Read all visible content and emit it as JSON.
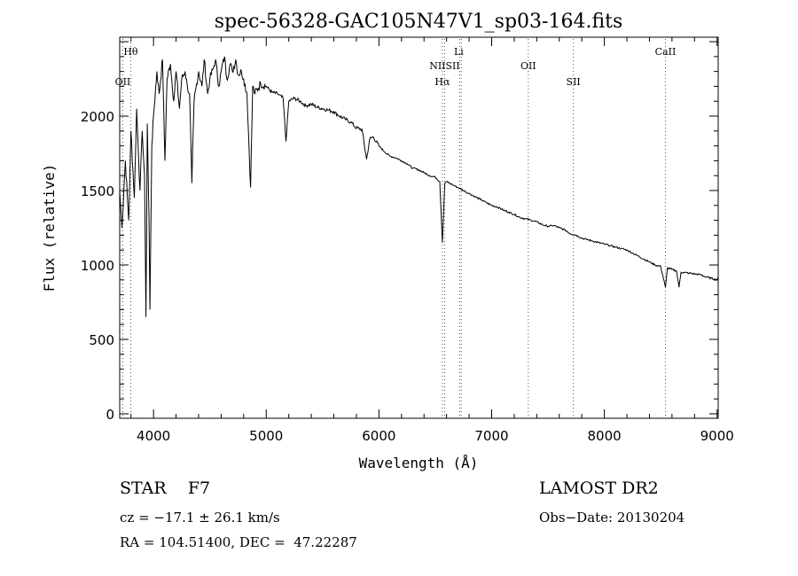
{
  "chart_data": {
    "type": "line",
    "title": "spec-56328-GAC105N47V1_sp03-164.fits",
    "xlabel": "Wavelength (Å)",
    "ylabel": "Flux (relative)",
    "xlim": [
      3700,
      9010
    ],
    "ylim": [
      -30,
      2530
    ],
    "xticks": [
      4000,
      5000,
      6000,
      7000,
      8000,
      9000
    ],
    "yticks": [
      0,
      500,
      1000,
      1500,
      2000
    ],
    "grid": false,
    "series": [
      {
        "name": "spectrum",
        "x": [
          3700,
          3720,
          3750,
          3780,
          3800,
          3830,
          3850,
          3880,
          3900,
          3920,
          3933,
          3945,
          3960,
          3968,
          3985,
          4000,
          4030,
          4050,
          4080,
          4101,
          4120,
          4150,
          4180,
          4200,
          4230,
          4250,
          4280,
          4300,
          4320,
          4340,
          4360,
          4400,
          4430,
          4450,
          4480,
          4500,
          4530,
          4550,
          4580,
          4600,
          4630,
          4650,
          4680,
          4700,
          4730,
          4750,
          4780,
          4800,
          4830,
          4861,
          4880,
          4900,
          4950,
          5000,
          5050,
          5100,
          5150,
          5175,
          5200,
          5250,
          5300,
          5350,
          5400,
          5450,
          5500,
          5550,
          5600,
          5650,
          5700,
          5750,
          5800,
          5850,
          5890,
          5920,
          5950,
          6000,
          6050,
          6100,
          6150,
          6200,
          6250,
          6300,
          6350,
          6400,
          6450,
          6500,
          6540,
          6563,
          6585,
          6600,
          6650,
          6700,
          6750,
          6800,
          6850,
          6900,
          6950,
          7000,
          7050,
          7100,
          7150,
          7200,
          7250,
          7300,
          7350,
          7400,
          7450,
          7500,
          7550,
          7600,
          7650,
          7700,
          7750,
          7800,
          7850,
          7900,
          7950,
          8000,
          8050,
          8100,
          8150,
          8200,
          8250,
          8300,
          8350,
          8400,
          8450,
          8500,
          8542,
          8560,
          8600,
          8640,
          8662,
          8680,
          8700,
          8750,
          8800,
          8850,
          8900,
          8950,
          9000,
          9010
        ],
        "y": [
          1500,
          1250,
          1700,
          1300,
          1900,
          1450,
          2050,
          1500,
          1900,
          1600,
          650,
          1950,
          1300,
          700,
          1800,
          2000,
          2300,
          2150,
          2380,
          1700,
          2250,
          2350,
          2100,
          2300,
          2050,
          2250,
          2300,
          2200,
          2150,
          1550,
          2100,
          2300,
          2200,
          2380,
          2150,
          2250,
          2320,
          2380,
          2200,
          2300,
          2400,
          2250,
          2350,
          2300,
          2380,
          2280,
          2300,
          2250,
          2150,
          1520,
          2200,
          2150,
          2220,
          2200,
          2160,
          2150,
          2120,
          1830,
          2100,
          2120,
          2100,
          2070,
          2080,
          2060,
          2050,
          2040,
          2030,
          2000,
          1980,
          1960,
          1920,
          1910,
          1710,
          1850,
          1860,
          1800,
          1760,
          1730,
          1720,
          1700,
          1680,
          1650,
          1640,
          1620,
          1600,
          1590,
          1560,
          1150,
          1550,
          1560,
          1540,
          1520,
          1500,
          1480,
          1460,
          1440,
          1420,
          1400,
          1390,
          1370,
          1355,
          1340,
          1320,
          1310,
          1300,
          1290,
          1270,
          1260,
          1265,
          1250,
          1235,
          1210,
          1200,
          1180,
          1170,
          1160,
          1150,
          1140,
          1130,
          1120,
          1110,
          1100,
          1080,
          1060,
          1040,
          1020,
          1000,
          990,
          850,
          980,
          970,
          960,
          850,
          950,
          950,
          945,
          940,
          935,
          920,
          910,
          900,
          920
        ]
      }
    ],
    "line_markers": [
      {
        "label": "Hθ",
        "wavelength": 3798,
        "row": 1
      },
      {
        "label": "OII",
        "wavelength": 3727,
        "row": 3
      },
      {
        "label": "Li",
        "wavelength": 6708,
        "row": 1
      },
      {
        "label": "NIISII",
        "wavelength": 6583,
        "row": 2
      },
      {
        "label": "Hα",
        "wavelength": 6563,
        "row": 3
      },
      {
        "label": "OII",
        "wavelength": 7325,
        "row": 2
      },
      {
        "label": "SII",
        "wavelength": 7725,
        "row": 3
      },
      {
        "label": "CaII",
        "wavelength": 8542,
        "row": 1
      }
    ],
    "marker_lines": [
      3727,
      3798,
      6563,
      6583,
      6716,
      6731,
      7325,
      7725,
      8542
    ]
  },
  "info": {
    "object_class": "STAR    F7",
    "survey": "LAMOST DR2",
    "cz": "cz = −17.1 ± 26.1 km/s",
    "obs_date": "Obs−Date: 20130204",
    "coords": "RA = 104.51400, DEC =  47.22287"
  }
}
